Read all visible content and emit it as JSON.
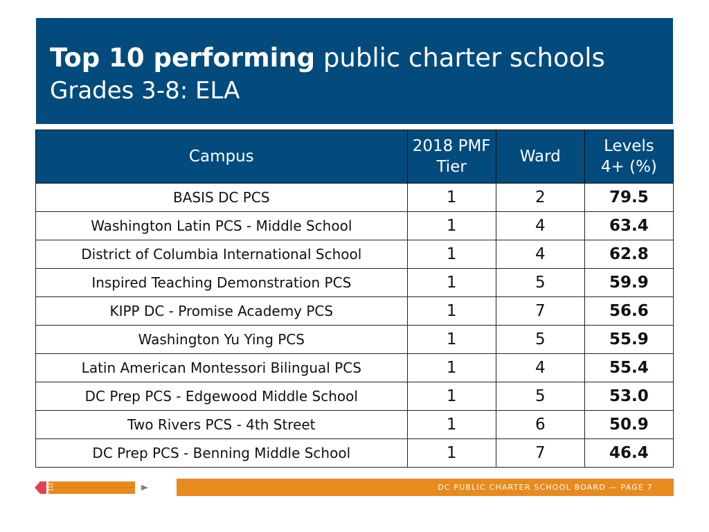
{
  "title": {
    "bold": "Top 10 performing",
    "normal": "public charter schools",
    "subtitle": "Grades 3-8: ELA"
  },
  "table": {
    "headers": {
      "campus": "Campus",
      "tier_line1": "2018 PMF",
      "tier_line2": "Tier",
      "ward": "Ward",
      "levels_line1": "Levels",
      "levels_line2": "4+ (%)"
    },
    "rows": [
      {
        "campus": "BASIS DC PCS",
        "tier": "1",
        "ward": "2",
        "levels": "79.5"
      },
      {
        "campus": "Washington Latin PCS - Middle School",
        "tier": "1",
        "ward": "4",
        "levels": "63.4"
      },
      {
        "campus": "District of Columbia International School",
        "tier": "1",
        "ward": "4",
        "levels": "62.8"
      },
      {
        "campus": "Inspired Teaching Demonstration PCS",
        "tier": "1",
        "ward": "5",
        "levels": "59.9"
      },
      {
        "campus": "KIPP DC - Promise Academy PCS",
        "tier": "1",
        "ward": "7",
        "levels": "56.6"
      },
      {
        "campus": "Washington Yu Ying PCS",
        "tier": "1",
        "ward": "5",
        "levels": "55.9"
      },
      {
        "campus": "Latin American Montessori Bilingual PCS",
        "tier": "1",
        "ward": "4",
        "levels": "55.4"
      },
      {
        "campus": "DC Prep PCS - Edgewood Middle School",
        "tier": "1",
        "ward": "5",
        "levels": "53.0"
      },
      {
        "campus": "Two Rivers PCS - 4th Street",
        "tier": "1",
        "ward": "6",
        "levels": "50.9"
      },
      {
        "campus": "DC Prep PCS - Benning Middle School",
        "tier": "1",
        "ward": "7",
        "levels": "46.4"
      }
    ]
  },
  "footer": {
    "text": "DC PUBLIC CHARTER SCHOOL BOARD — PAGE 7"
  },
  "colors": {
    "brand_blue": "#034b7d",
    "accent_orange": "#e88a1e",
    "pencil_red": "#e0454f"
  },
  "icons": {
    "pencil": "pencil-icon",
    "pointer": "play-arrow-icon"
  }
}
